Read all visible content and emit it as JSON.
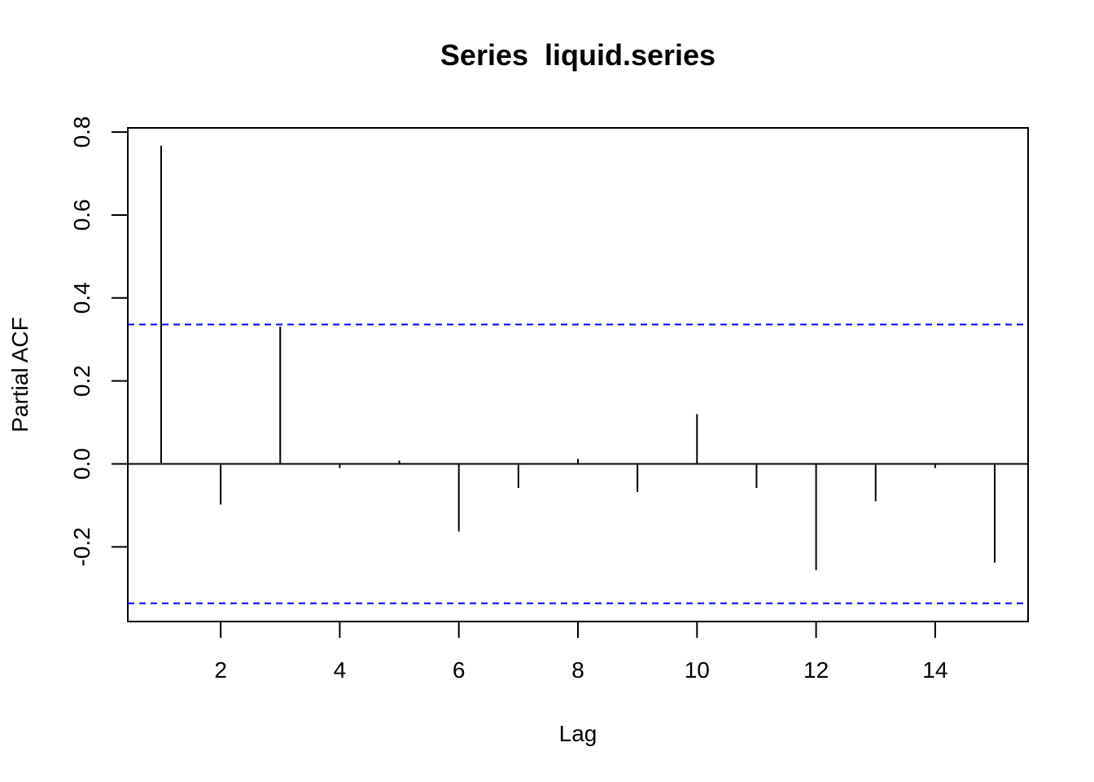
{
  "chart_data": {
    "type": "bar",
    "title": "Series  liquid.series",
    "xlabel": "Lag",
    "ylabel": "Partial ACF",
    "xlim": [
      0.44,
      15.56
    ],
    "ylim": [
      -0.38,
      0.81
    ],
    "x_ticks": [
      2,
      4,
      6,
      8,
      10,
      12,
      14
    ],
    "x_tick_labels": [
      "2",
      "4",
      "6",
      "8",
      "10",
      "12",
      "14"
    ],
    "y_ticks": [
      -0.2,
      0.0,
      0.2,
      0.4,
      0.6,
      0.8
    ],
    "y_tick_labels": [
      "-0.2",
      "0.0",
      "0.2",
      "0.4",
      "0.6",
      "0.8"
    ],
    "x": [
      1,
      2,
      3,
      4,
      5,
      6,
      7,
      8,
      9,
      10,
      11,
      12,
      13,
      14,
      15
    ],
    "values": [
      0.767,
      -0.098,
      0.331,
      -0.01,
      0.008,
      -0.163,
      -0.058,
      0.012,
      -0.068,
      0.12,
      -0.058,
      -0.256,
      -0.09,
      -0.01,
      -0.238
    ],
    "confidence_bound": 0.336,
    "grid": false,
    "colors": {
      "bars": "#000000",
      "confidence_lines": "#0000ff"
    }
  }
}
